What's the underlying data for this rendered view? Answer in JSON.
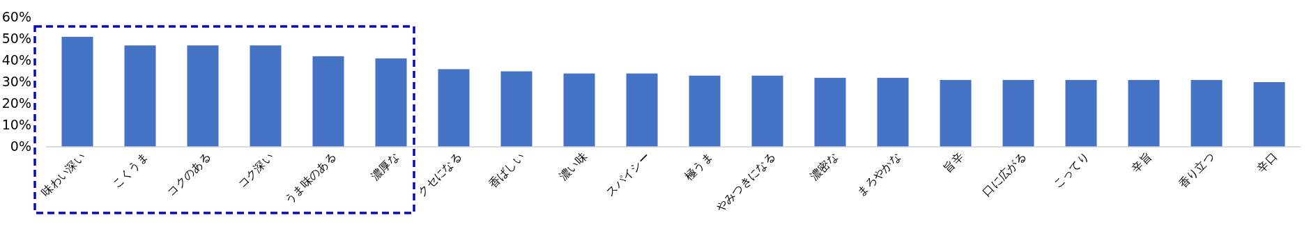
{
  "chart_data": {
    "type": "bar",
    "categories": [
      "味わい深い",
      "こくうま",
      "コクのある",
      "コク深い",
      "うま味のある",
      "濃厚な",
      "クセになる",
      "香ばしい",
      "濃い味",
      "スパイシー",
      "極うま",
      "やみつきになる",
      "濃密な",
      "まろやかな",
      "旨辛",
      "口に広がる",
      "こってり",
      "辛旨",
      "香り立つ",
      "辛口"
    ],
    "values": [
      51,
      47,
      47,
      47,
      42,
      41,
      36,
      35,
      34,
      34,
      33,
      33,
      32,
      32,
      31,
      31,
      31,
      31,
      31,
      30
    ],
    "color": "#4472c4",
    "ylim": [
      0,
      60
    ],
    "yticks": [
      {
        "value": 0,
        "label": "0%"
      },
      {
        "value": 10,
        "label": "10%"
      },
      {
        "value": 20,
        "label": "20%"
      },
      {
        "value": 30,
        "label": "30%"
      },
      {
        "value": 40,
        "label": "40%"
      },
      {
        "value": 50,
        "label": "50%"
      },
      {
        "value": 60,
        "label": "60%"
      }
    ]
  }
}
